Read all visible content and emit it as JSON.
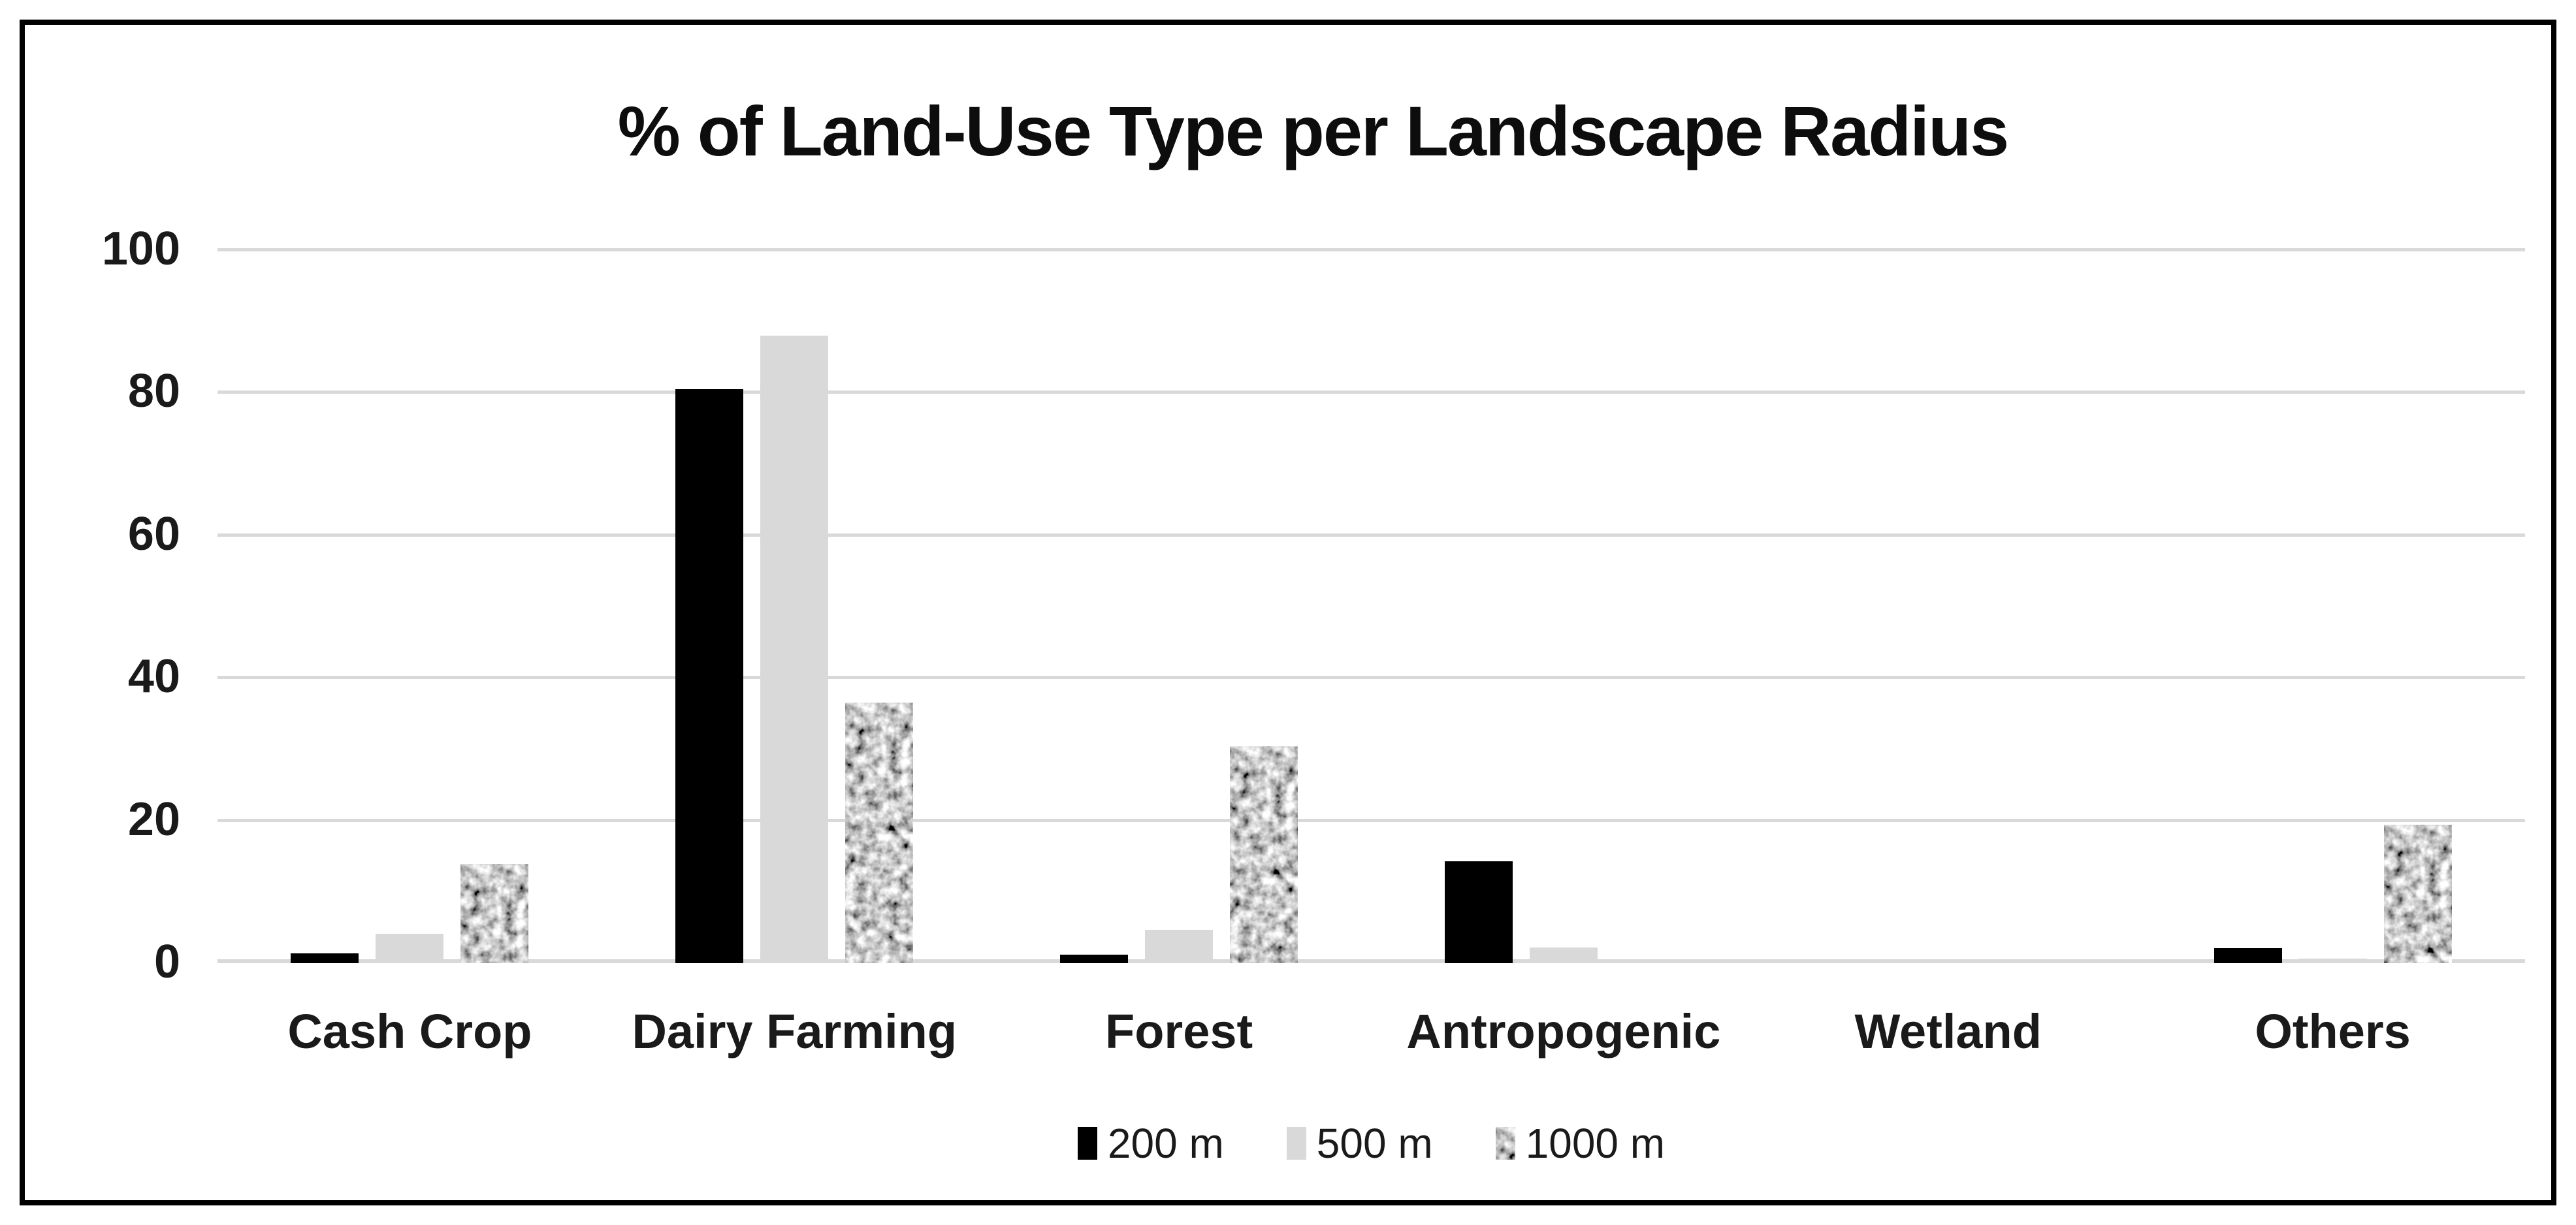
{
  "chart_data": {
    "type": "bar",
    "title": "% of Land-Use Type per Landscape Radius",
    "xlabel": "",
    "ylabel": "",
    "categories": [
      "Cash Crop",
      "Dairy Farming",
      "Forest",
      "Antropogenic",
      "Wetland",
      "Others"
    ],
    "series": [
      {
        "name": "200 m",
        "color": "#000000",
        "pattern": "solid",
        "values": [
          1.4,
          80.5,
          1.2,
          14.3,
          0,
          2.1
        ]
      },
      {
        "name": "500 m",
        "color": "#d9d9d9",
        "pattern": "solid",
        "values": [
          4.1,
          88.0,
          4.7,
          2.2,
          0,
          0.6
        ]
      },
      {
        "name": "1000 m",
        "color": "#a6a6a6",
        "pattern": "speckle",
        "values": [
          13.9,
          36.5,
          30.4,
          0,
          0,
          19.4
        ]
      }
    ],
    "ylim": [
      0,
      100
    ],
    "yticks": [
      0,
      20,
      40,
      60,
      80,
      100
    ],
    "grid": true,
    "legend_position": "bottom",
    "colors": {
      "gridline": "#d9d9d9",
      "text": "#1a1a1a",
      "frame_border": "#000000",
      "background": "#ffffff"
    }
  }
}
